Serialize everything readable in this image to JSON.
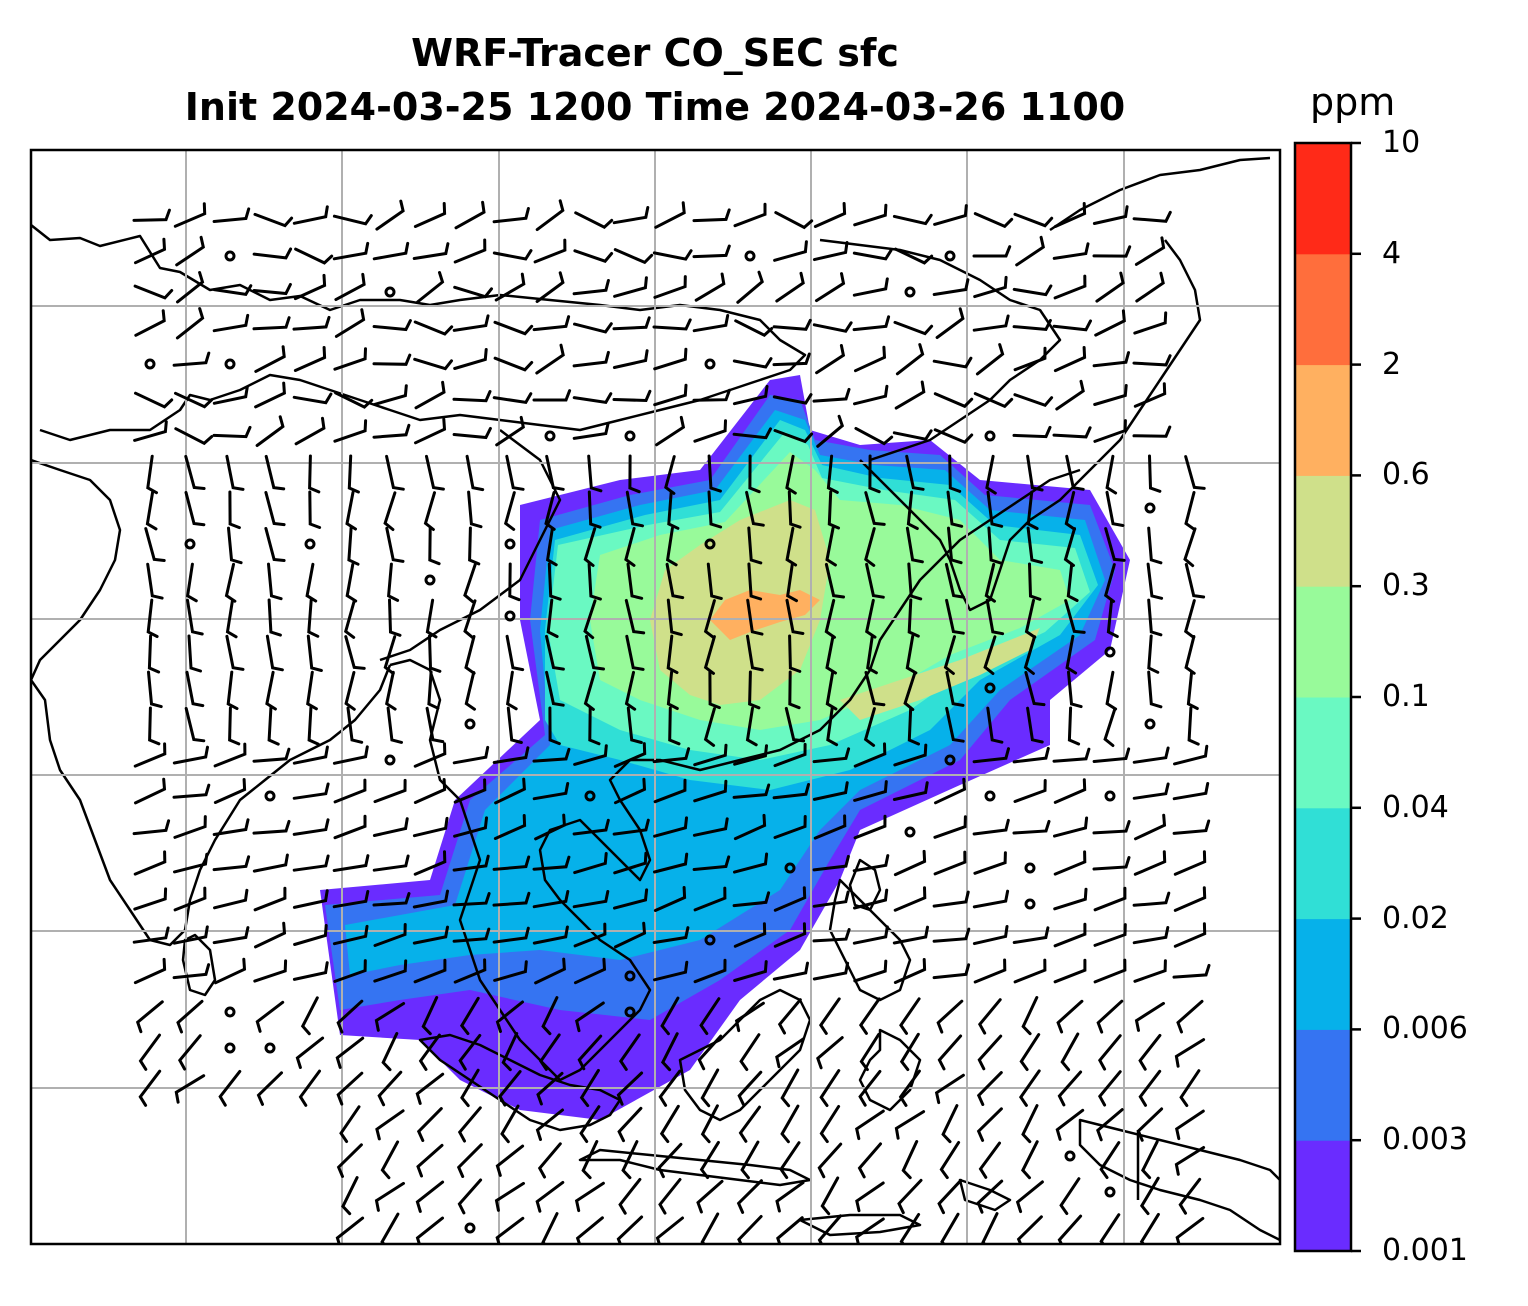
{
  "title_line1": "WRF-Tracer CO_SEC sfc",
  "title_line2": "Init 2024-03-25 1200 Time 2024-03-26 1100",
  "colorbar": {
    "unit": "ppm",
    "levels": [
      "0.001",
      "0.003",
      "0.006",
      "0.02",
      "0.04",
      "0.1",
      "0.3",
      "0.6",
      "2",
      "4",
      "10"
    ],
    "colors": [
      "#6a2cff",
      "#3574f2",
      "#06b1ea",
      "#30dfd6",
      "#6af9c2",
      "#98fa9a",
      "#cfe08a",
      "#ffb060",
      "#ff6e3c",
      "#ff2a18"
    ]
  },
  "map": {
    "land_outline_color": "#000000",
    "grid_color": "#b0b0b0",
    "wind_barb_color": "#000000"
  }
}
